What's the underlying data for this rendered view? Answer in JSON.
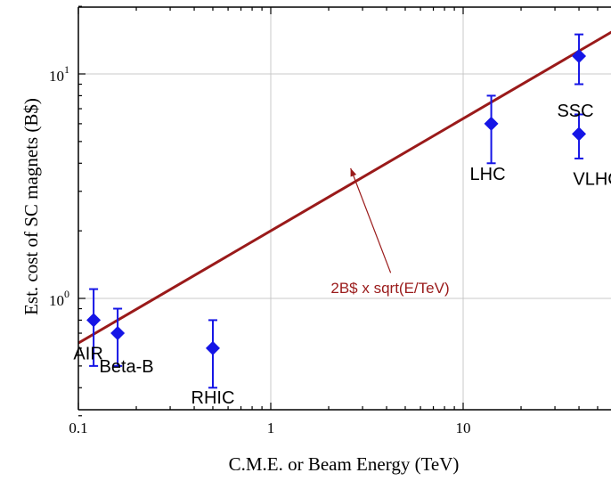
{
  "chart_data": {
    "type": "scatter",
    "title": "",
    "xlabel": "C.M.E. or Beam Energy (TeV)",
    "ylabel": "Est. cost of SC magnets (B$)",
    "xscale": "log",
    "yscale": "log",
    "xlim": [
      0.1,
      60
    ],
    "ylim": [
      0.3,
      20
    ],
    "grid": true,
    "x_ticks": [
      {
        "value": 0.1,
        "label": "0.1"
      },
      {
        "value": 1,
        "label": "1"
      },
      {
        "value": 10,
        "label": "10"
      }
    ],
    "y_ticks": [
      {
        "value": 1,
        "base": "10",
        "exp": "0"
      },
      {
        "value": 10,
        "base": "10",
        "exp": "1"
      }
    ],
    "points": [
      {
        "label": "AIR",
        "x": 0.12,
        "y": 0.8,
        "y_low": 0.5,
        "y_high": 1.1
      },
      {
        "label": "Beta-B",
        "x": 0.16,
        "y": 0.7,
        "y_low": 0.5,
        "y_high": 0.9
      },
      {
        "label": "RHIC",
        "x": 0.5,
        "y": 0.6,
        "y_low": 0.4,
        "y_high": 0.8
      },
      {
        "label": "LHC",
        "x": 14,
        "y": 6,
        "y_low": 4,
        "y_high": 8
      },
      {
        "label": "SSC",
        "x": 40,
        "y": 12,
        "y_low": 9,
        "y_high": 15
      },
      {
        "label": "VLHC",
        "x": 40,
        "y": 5.4,
        "y_low": 4.2,
        "y_high": 6.6
      }
    ],
    "fit_line": {
      "label": "2B$ x sqrt(E/TeV)",
      "coefficient": 2,
      "exponent": 0.5,
      "x_range": [
        0.1,
        60
      ]
    },
    "annotation_arrow": {
      "from": [
        4.2,
        1.3
      ],
      "to": [
        2.6,
        3.8
      ]
    },
    "colors": {
      "points": "#1515e6",
      "fit_line": "#9a1a1a",
      "grid": "#c8c8c8",
      "axis": "#000000"
    }
  }
}
